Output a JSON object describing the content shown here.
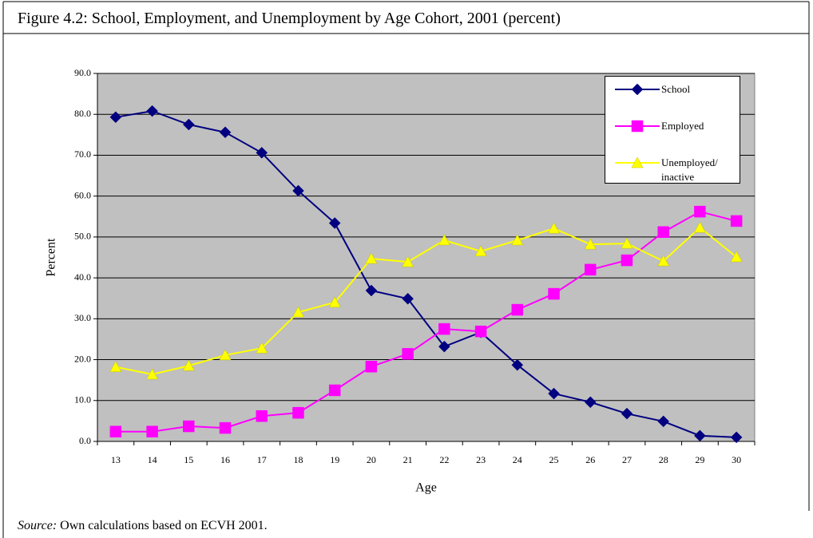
{
  "chart_data": {
    "type": "line",
    "title": "Figure 4.2: School, Employment, and Unemployment by Age Cohort, 2001 (percent)",
    "source": {
      "label": "Source:",
      "text": "Own calculations based on ECVH 2001."
    },
    "xlabel": "Age",
    "ylabel": "Percent",
    "categories": [
      "13",
      "14",
      "15",
      "16",
      "17",
      "18",
      "19",
      "20",
      "21",
      "22",
      "23",
      "24",
      "25",
      "26",
      "27",
      "28",
      "29",
      "30"
    ],
    "series": [
      {
        "name": "School",
        "color": "#000080",
        "marker": "diamond",
        "values": [
          79.3,
          80.8,
          77.5,
          75.6,
          70.6,
          61.3,
          53.4,
          36.9,
          34.9,
          23.2,
          26.7,
          18.7,
          11.7,
          9.6,
          6.8,
          4.9,
          1.4,
          1.0
        ]
      },
      {
        "name": "Employed",
        "color": "#ff00ff",
        "marker": "square",
        "values": [
          2.4,
          2.4,
          3.7,
          3.3,
          6.2,
          7.0,
          12.5,
          18.3,
          21.4,
          27.5,
          26.9,
          32.2,
          36.1,
          42.0,
          44.3,
          51.2,
          56.2,
          53.9
        ]
      },
      {
        "name": "Unemployed/ inactive",
        "color": "#ffff00",
        "marker": "triangle",
        "values": [
          18.2,
          16.4,
          18.5,
          21.1,
          22.8,
          31.6,
          34.0,
          44.7,
          43.9,
          49.2,
          46.5,
          49.2,
          52.1,
          48.2,
          48.4,
          44.1,
          52.3,
          45.1
        ]
      }
    ],
    "ylim": [
      0,
      90
    ],
    "yticks": [
      {
        "value": 0,
        "label": "0.0"
      },
      {
        "value": 10,
        "label": "10.0"
      },
      {
        "value": 20,
        "label": "20.0"
      },
      {
        "value": 30,
        "label": "30.0"
      },
      {
        "value": 40,
        "label": "40.0"
      },
      {
        "value": 50,
        "label": "50.0"
      },
      {
        "value": 60,
        "label": "60.0"
      },
      {
        "value": 70,
        "label": "70.0"
      },
      {
        "value": 80,
        "label": "80.0"
      },
      {
        "value": 90,
        "label": "90.0"
      }
    ],
    "grid": true,
    "plot_background": "#c0c0c0",
    "legend": "upper right"
  }
}
